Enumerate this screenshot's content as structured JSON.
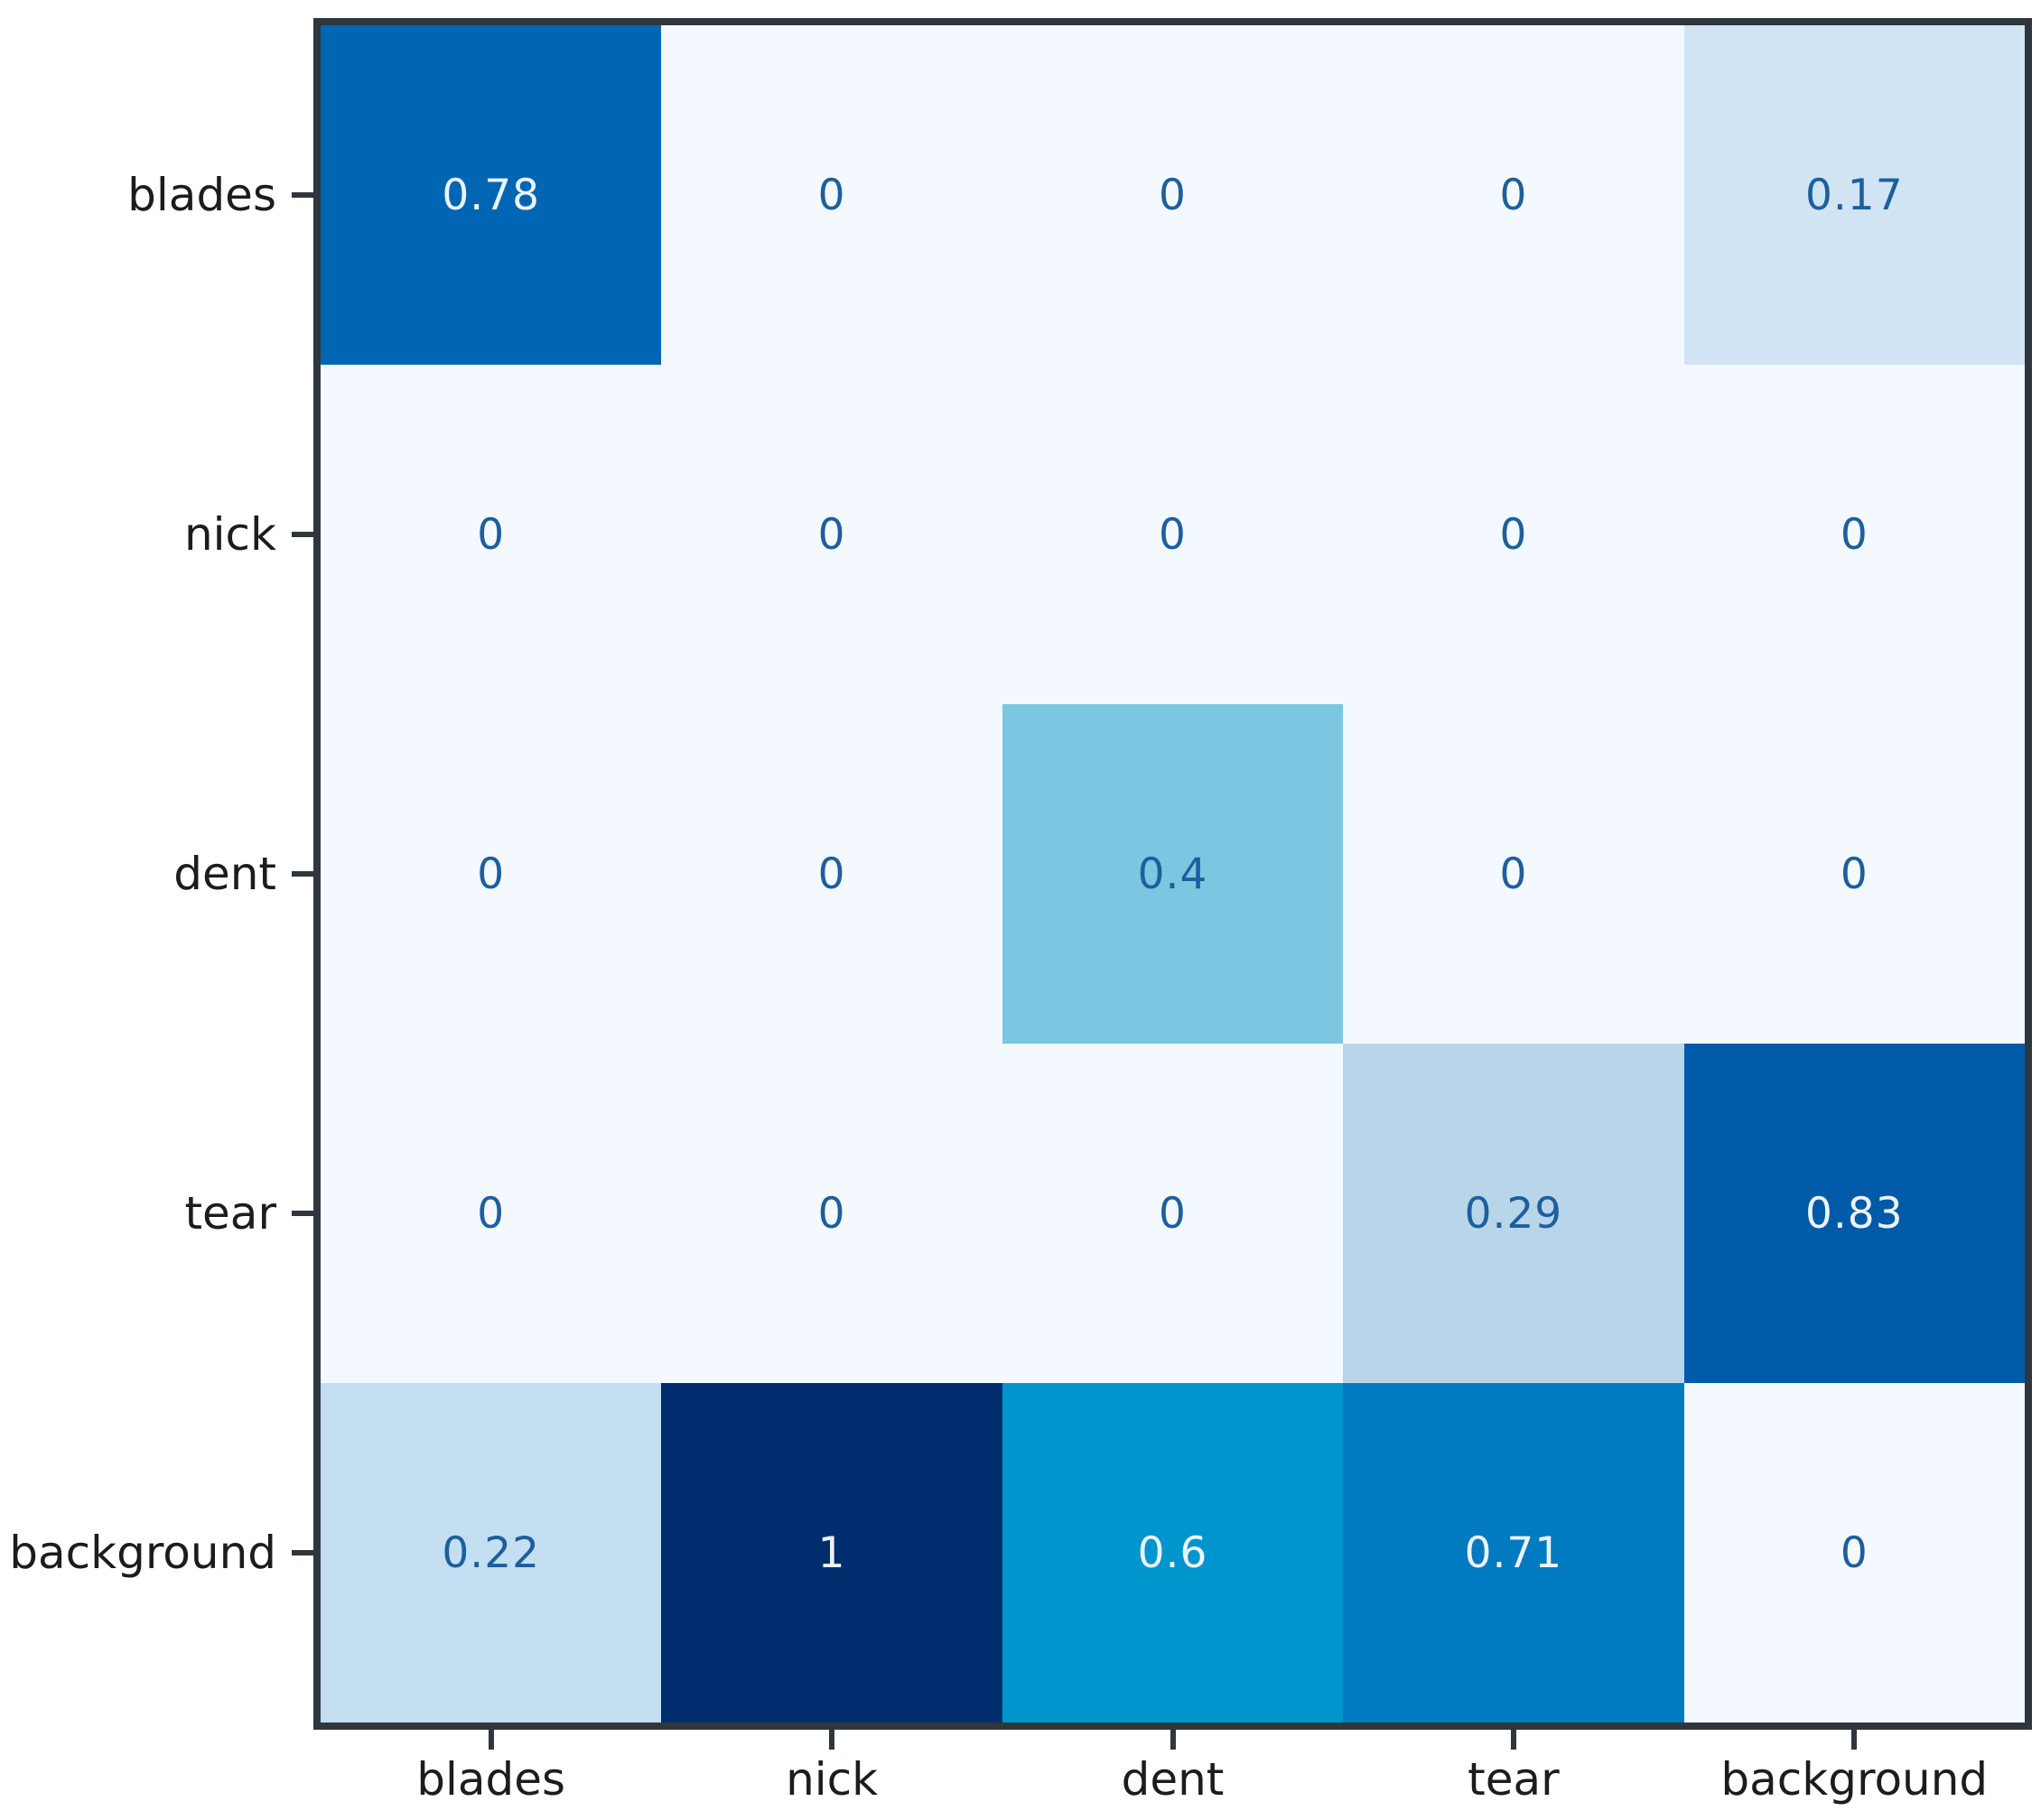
{
  "chart_data": {
    "type": "heatmap",
    "subtype": "confusion-matrix",
    "title": "",
    "xlabel": "",
    "ylabel": "",
    "x_categories": [
      "blades",
      "nick",
      "dent",
      "tear",
      "background"
    ],
    "y_categories": [
      "blades",
      "nick",
      "dent",
      "tear",
      "background"
    ],
    "values": [
      [
        0.78,
        0,
        0,
        0,
        0.17
      ],
      [
        0,
        0,
        0,
        0,
        0
      ],
      [
        0,
        0,
        0.4,
        0,
        0
      ],
      [
        0,
        0,
        0,
        0.29,
        0.83
      ],
      [
        0.22,
        1,
        0.6,
        0.71,
        0
      ]
    ],
    "value_labels": [
      [
        "0.78",
        "0",
        "0",
        "0",
        "0.17"
      ],
      [
        "0",
        "0",
        "0",
        "0",
        "0"
      ],
      [
        "0",
        "0",
        "0.4",
        "0",
        "0"
      ],
      [
        "0",
        "0",
        "0",
        "0.29",
        "0.83"
      ],
      [
        "0.22",
        "1",
        "0.6",
        "0.71",
        "0"
      ]
    ],
    "cell_colors": [
      [
        "#0066b3",
        "#f3f9fe",
        "#f3f9fe",
        "#f3f9fe",
        "#d0e4f4"
      ],
      [
        "#f3f9fe",
        "#f3f9fe",
        "#f3f9fe",
        "#f3f9fe",
        "#f3f9fe"
      ],
      [
        "#f3f9fe",
        "#f3f9fe",
        "#7bc6e0",
        "#f3f9fe",
        "#f3f9fe"
      ],
      [
        "#f3f9fe",
        "#f3f9fe",
        "#f3f9fe",
        "#b8d5ea",
        "#005aa8"
      ],
      [
        "#c5dff2",
        "#002d6e",
        "#0095cc",
        "#007ac0",
        "#f3f9fe"
      ]
    ],
    "colormap": "Blues",
    "value_range": [
      0,
      1
    ],
    "text_color_threshold": 0.5,
    "grid": false,
    "legend_position": "none"
  },
  "colors": {
    "figure_background": "#ffffff",
    "axis_spine": "#30363d",
    "tick_label": "#1c1c1c",
    "cell_text_dark": "#1d5f9e",
    "cell_text_light": "#ecf4fb"
  }
}
